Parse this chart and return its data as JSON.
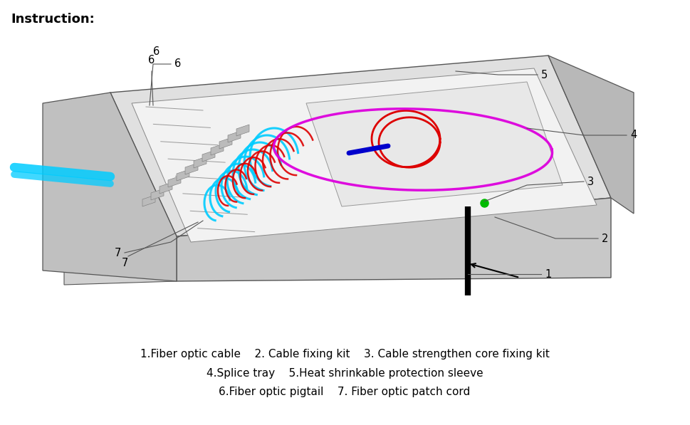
{
  "title": "Instruction:",
  "bg_color": "#ffffff",
  "caption_lines": [
    "1.Fiber optic cable    2. Cable fixing kit    3. Cable strengthen core fixing kit",
    "4.Splice tray    5.Heat shrinkable protection sleeve",
    "6.Fiber optic pigtail    7. Fiber optic patch cord"
  ],
  "cyan_color": "#00ccff",
  "red_color": "#dd0000",
  "magenta_color": "#dd00dd",
  "blue_color": "#0000cc",
  "green_color": "#00bb00",
  "black_color": "#000000",
  "line_color": "#555555",
  "label_color": "#555555",
  "label_fontsize": 10.5
}
